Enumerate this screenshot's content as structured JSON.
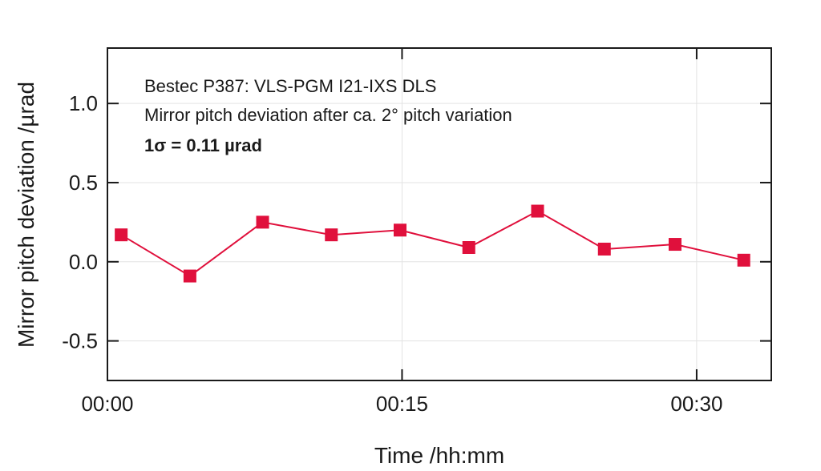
{
  "chart_data": {
    "type": "line",
    "xlabel": "Time /hh:mm",
    "ylabel": "Mirror pitch deviation /µrad",
    "ylim": [
      -0.75,
      1.35
    ],
    "xlim_minutes": [
      0,
      33.8
    ],
    "yticks": [
      {
        "value": 1.0,
        "label": "1.0"
      },
      {
        "value": 0.5,
        "label": "0.5"
      },
      {
        "value": 0.0,
        "label": "0.0"
      },
      {
        "value": -0.5,
        "label": "-0.5"
      }
    ],
    "xticks": [
      {
        "minutes": 0,
        "label": "00:00"
      },
      {
        "minutes": 15,
        "label": "00:15"
      },
      {
        "minutes": 30,
        "label": "00:30"
      }
    ],
    "annotations": [
      "Bestec P387: VLS-PGM I21-IXS DLS",
      "Mirror pitch deviation after ca. 2° pitch variation",
      "1σ = 0.11 µrad"
    ],
    "grid": true,
    "series": [
      {
        "color": "#e0103c",
        "marker": "square",
        "x_minutes": [
          0.7,
          4.2,
          7.9,
          11.4,
          14.9,
          18.4,
          21.9,
          25.3,
          28.9,
          32.4
        ],
        "y": [
          0.17,
          -0.09,
          0.25,
          0.17,
          0.2,
          0.09,
          0.32,
          0.08,
          0.11,
          0.01
        ]
      }
    ]
  }
}
